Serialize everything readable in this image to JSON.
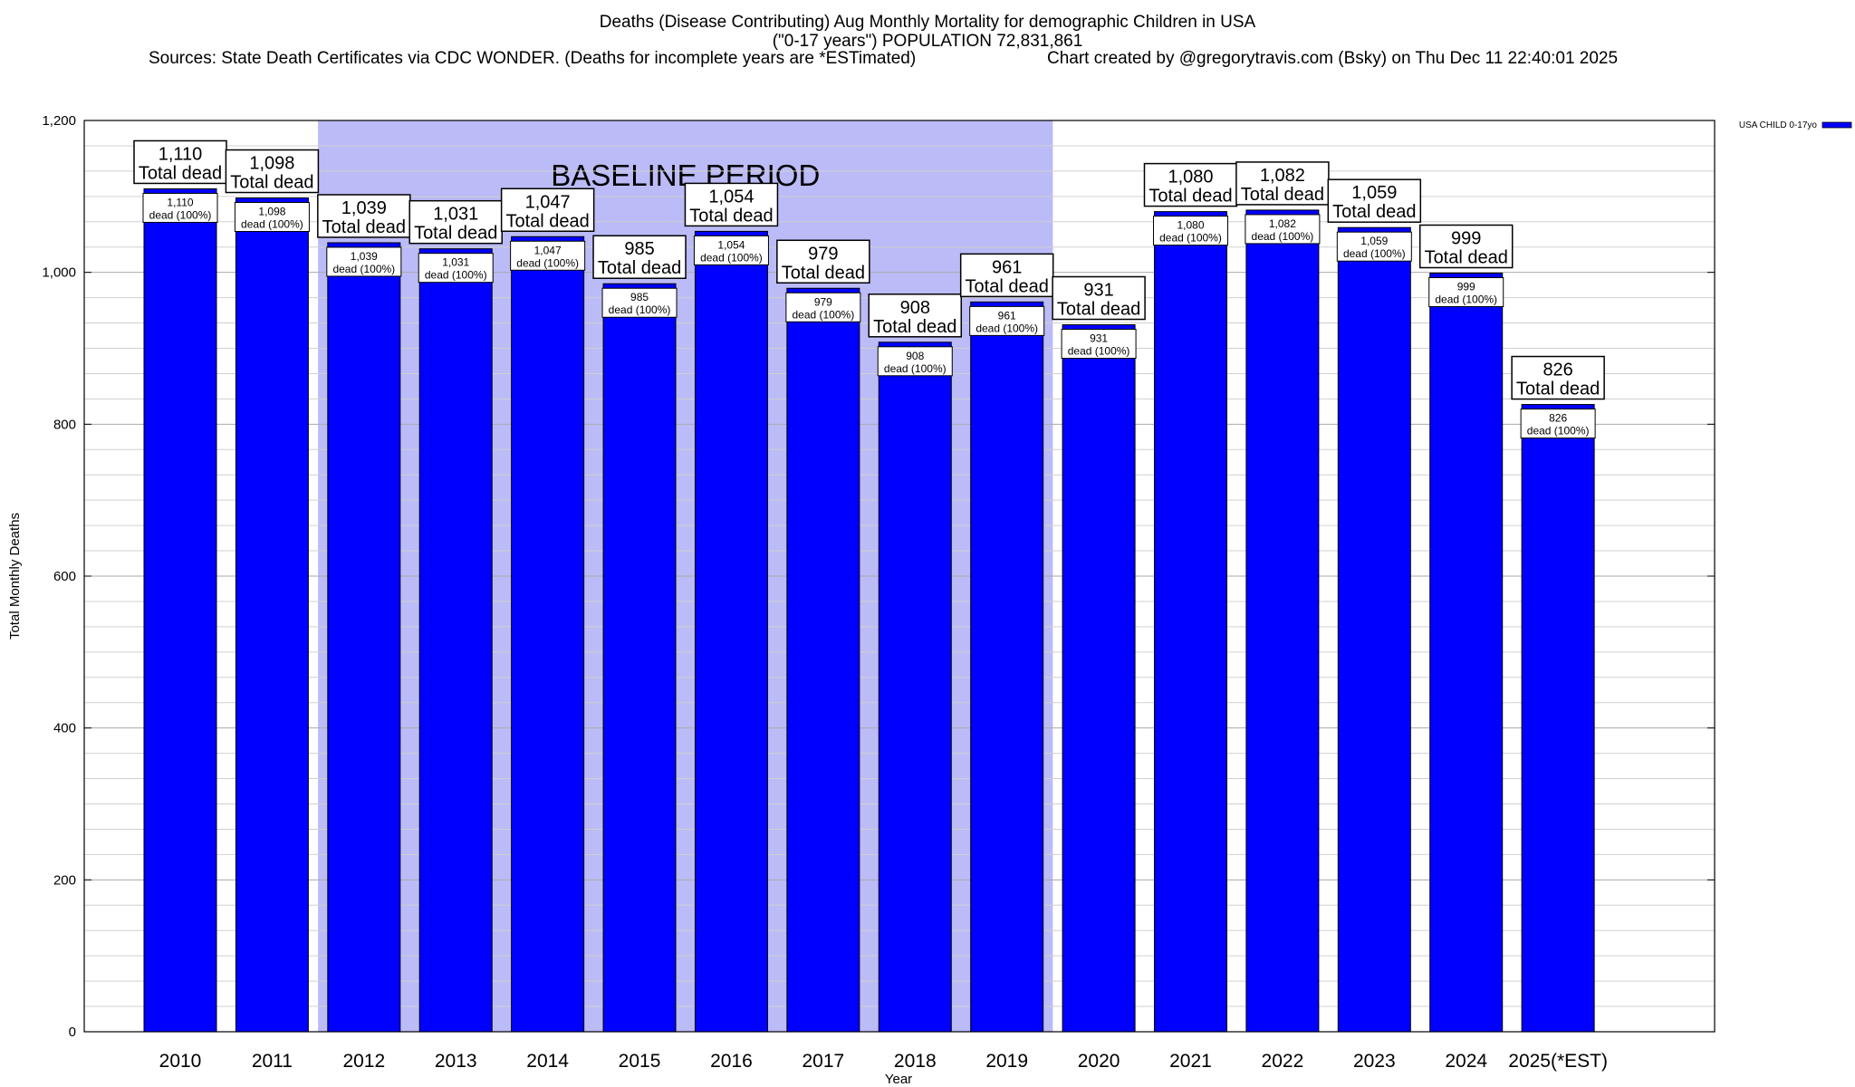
{
  "header": {
    "title_line1": "Deaths (Disease Contributing) Aug Monthly Mortality for demographic Children in USA",
    "title_line2": "(\"0-17 years\") POPULATION 72,831,861",
    "sources": "Sources: State Death Certificates via CDC WONDER. (Deaths for incomplete years are *ESTimated)",
    "credit": "Chart created by @gregorytravis.com (Bsky) on Thu Dec 11 22:40:01 2025"
  },
  "chart_data": {
    "type": "bar",
    "title": "Deaths (Disease Contributing) Aug Monthly Mortality for demographic Children in USA",
    "xlabel": "Year",
    "ylabel": "Total Monthly Deaths",
    "ylim": [
      0,
      1200
    ],
    "yticks": [
      0,
      200,
      400,
      600,
      800,
      1000,
      1200
    ],
    "ytick_labels": [
      "0",
      "200",
      "400",
      "600",
      "800",
      "1,000",
      "1,200"
    ],
    "grid": true,
    "categories": [
      "2010",
      "2011",
      "2012",
      "2013",
      "2014",
      "2015",
      "2016",
      "2017",
      "2018",
      "2019",
      "2020",
      "2021",
      "2022",
      "2023",
      "2024",
      "2025(*EST)"
    ],
    "series": [
      {
        "name": "USA CHILD 0-17yo",
        "color": "#0000ff",
        "values": [
          1110,
          1098,
          1039,
          1031,
          1047,
          985,
          1054,
          979,
          908,
          961,
          931,
          1080,
          1082,
          1059,
          999,
          826
        ]
      }
    ],
    "value_labels": [
      "1,110",
      "1,098",
      "1,039",
      "1,031",
      "1,047",
      "985",
      "1,054",
      "979",
      "908",
      "961",
      "931",
      "1,080",
      "1,082",
      "1,059",
      "999",
      "826"
    ],
    "top_label_suffix": "Total dead",
    "inner_label_suffix": "dead (100%)",
    "legend_position": "top-right",
    "annotations": [
      {
        "text": "BASELINE PERIOD",
        "span_categories": [
          "2012",
          "2019"
        ],
        "color": "#bbbbf7"
      }
    ]
  }
}
